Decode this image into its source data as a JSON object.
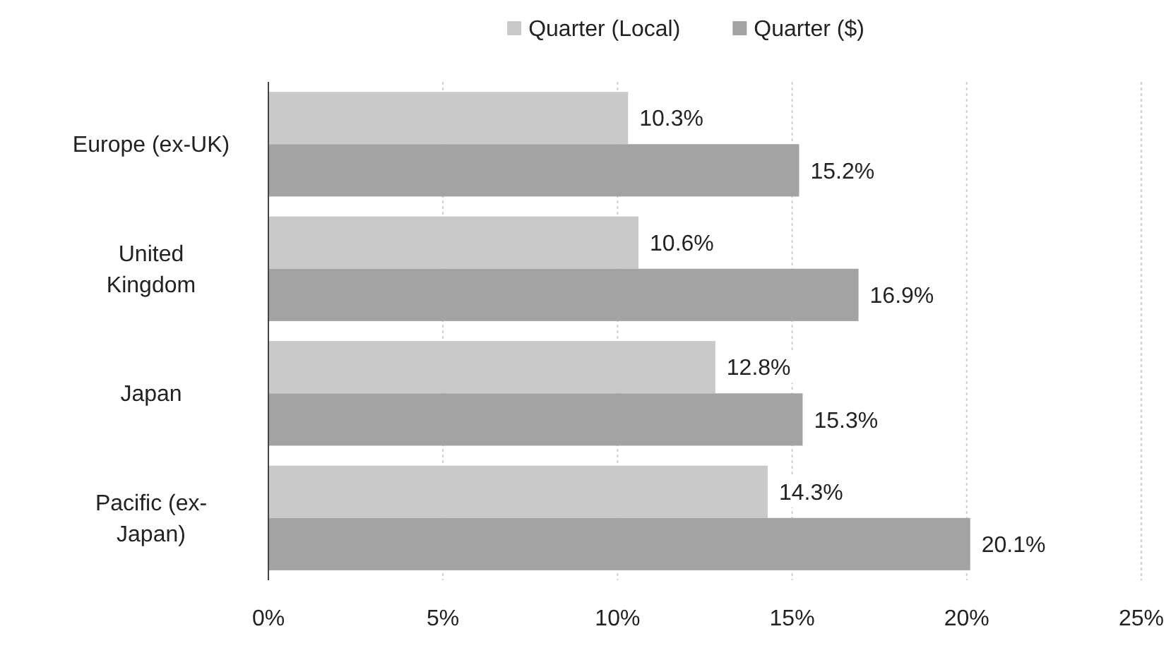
{
  "chart_data": {
    "type": "bar",
    "orientation": "horizontal",
    "categories": [
      "Europe (ex-UK)",
      "United Kingdom",
      "Japan",
      "Pacific (ex-Japan)"
    ],
    "series": [
      {
        "name": "Quarter (Local)",
        "color": "#c9c9c9",
        "values": [
          10.3,
          10.6,
          12.8,
          14.3
        ],
        "value_labels": [
          "10.3%",
          "10.6%",
          "12.8%",
          "14.3%"
        ]
      },
      {
        "name": "Quarter ($)",
        "color": "#a3a3a3",
        "values": [
          15.2,
          16.9,
          15.3,
          20.1
        ],
        "value_labels": [
          "15.2%",
          "16.9%",
          "15.3%",
          "20.1%"
        ]
      }
    ],
    "xlim": [
      0,
      25
    ],
    "xticks": [
      {
        "value": 0,
        "label": "0%"
      },
      {
        "value": 5,
        "label": "5%"
      },
      {
        "value": 10,
        "label": "10%"
      },
      {
        "value": 15,
        "label": "15%"
      },
      {
        "value": 20,
        "label": "20%"
      },
      {
        "value": 25,
        "label": "25%"
      }
    ],
    "grid": "x",
    "legend": "top"
  }
}
